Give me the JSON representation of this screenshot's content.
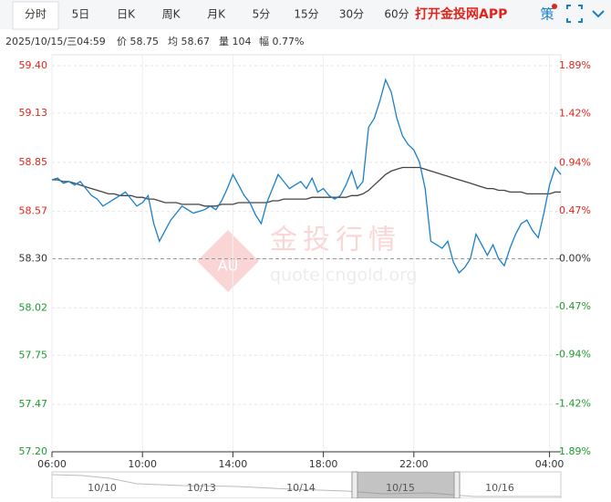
{
  "tabs": [
    "分时",
    "5日",
    "日K",
    "周K",
    "月K",
    "5分",
    "15分",
    "30分",
    "60分"
  ],
  "app_link": "打开金投网APP",
  "strategy": "策",
  "info": {
    "time": "2025/10/15/三04:59",
    "price": "价 58.75",
    "avg": "均 58.67",
    "volume": "量 104",
    "range": "幅 0.77%"
  },
  "watermark": {
    "logo": "AU",
    "title": "金投行情",
    "url": "quote.cngold.org"
  },
  "navigator": {
    "dates": [
      "10/10",
      "10/13",
      "10/14",
      "10/15",
      "10/16"
    ]
  },
  "chart_data": {
    "type": "line",
    "categories": [
      "06:00",
      null,
      null,
      null,
      null,
      null,
      null,
      null,
      null,
      null,
      null,
      null,
      null,
      null,
      null,
      null,
      "10:00",
      null,
      null,
      null,
      null,
      null,
      null,
      null,
      null,
      null,
      null,
      null,
      null,
      null,
      null,
      null,
      "14:00",
      null,
      null,
      null,
      null,
      null,
      null,
      null,
      null,
      null,
      null,
      null,
      null,
      null,
      null,
      null,
      "18:00",
      null,
      null,
      null,
      null,
      null,
      null,
      null,
      null,
      null,
      null,
      null,
      null,
      null,
      null,
      null,
      "22:00",
      null,
      null,
      null,
      null,
      null,
      null,
      null,
      null,
      null,
      null,
      null,
      null,
      null,
      null,
      null,
      null,
      null,
      null,
      null,
      null,
      null,
      null,
      null,
      "04:00",
      null,
      null
    ],
    "series": [
      {
        "name": "价",
        "color": "#1a7fc9",
        "values": [
          58.75,
          58.76,
          58.73,
          58.74,
          58.72,
          58.74,
          58.7,
          58.66,
          58.64,
          58.6,
          58.62,
          58.64,
          58.66,
          58.68,
          58.64,
          58.6,
          58.62,
          58.66,
          58.5,
          58.4,
          58.46,
          58.52,
          58.56,
          58.6,
          58.58,
          58.56,
          58.57,
          58.58,
          58.6,
          58.58,
          58.63,
          58.7,
          58.78,
          58.72,
          58.66,
          58.62,
          58.55,
          58.5,
          58.62,
          58.7,
          58.78,
          58.74,
          58.7,
          58.72,
          58.74,
          58.7,
          58.76,
          58.68,
          58.7,
          58.66,
          58.64,
          58.66,
          58.72,
          58.8,
          58.7,
          58.74,
          59.05,
          59.1,
          59.2,
          59.32,
          59.25,
          59.1,
          59.0,
          58.95,
          58.92,
          58.85,
          58.7,
          58.4,
          58.38,
          58.36,
          58.4,
          58.28,
          58.22,
          58.25,
          58.3,
          58.44,
          58.38,
          58.32,
          58.38,
          58.3,
          58.26,
          58.36,
          58.44,
          58.5,
          58.52,
          58.46,
          58.42,
          58.56,
          58.72,
          58.82,
          58.78
        ]
      },
      {
        "name": "均",
        "color": "#444444",
        "values": [
          58.75,
          58.75,
          58.74,
          58.74,
          58.73,
          58.72,
          58.71,
          58.7,
          58.69,
          58.68,
          58.67,
          58.67,
          58.66,
          58.66,
          58.66,
          58.65,
          58.65,
          58.64,
          58.64,
          58.63,
          58.62,
          58.62,
          58.62,
          58.61,
          58.61,
          58.61,
          58.61,
          58.6,
          58.6,
          58.6,
          58.61,
          58.61,
          58.61,
          58.62,
          58.62,
          58.62,
          58.62,
          58.62,
          58.62,
          58.63,
          58.63,
          58.64,
          58.64,
          58.64,
          58.64,
          58.64,
          58.65,
          58.65,
          58.65,
          58.65,
          58.65,
          58.65,
          58.65,
          58.66,
          58.66,
          58.67,
          58.69,
          58.72,
          58.75,
          58.78,
          58.8,
          58.81,
          58.82,
          58.82,
          58.82,
          58.82,
          58.81,
          58.8,
          58.79,
          58.78,
          58.77,
          58.76,
          58.75,
          58.74,
          58.73,
          58.72,
          58.71,
          58.7,
          58.7,
          58.69,
          58.69,
          58.68,
          58.68,
          58.68,
          58.67,
          58.67,
          58.67,
          58.67,
          58.67,
          58.68,
          58.68
        ]
      }
    ],
    "base": 58.3,
    "ylim": [
      57.2,
      59.4
    ],
    "yticks": [
      {
        "value": 59.4,
        "label": "59.40"
      },
      59.13,
      58.85,
      58.57,
      {
        "value": 58.3,
        "label": "58.30"
      },
      58.02,
      57.75,
      57.47,
      {
        "value": 57.2,
        "label": "57.20"
      }
    ],
    "y2lim": [
      -1.89,
      1.89
    ],
    "y2ticks": [
      {
        "value": 1.89,
        "label": "1.89%"
      },
      {
        "value": 1.42,
        "label": "1.42%"
      },
      {
        "value": 0.94,
        "label": "0.94%"
      },
      {
        "value": 0.47,
        "label": "0.47%"
      },
      {
        "value": 0,
        "label": "0.00%"
      },
      {
        "value": -0.47,
        "label": "-0.47%"
      },
      {
        "value": -0.94,
        "label": "-0.94%"
      },
      {
        "value": -1.42,
        "label": "-1.42%"
      },
      {
        "value": -1.89,
        "label": "-1.89%"
      }
    ],
    "up_color": "#e0241b",
    "down_color": "#1f9a2e",
    "grid": true
  }
}
